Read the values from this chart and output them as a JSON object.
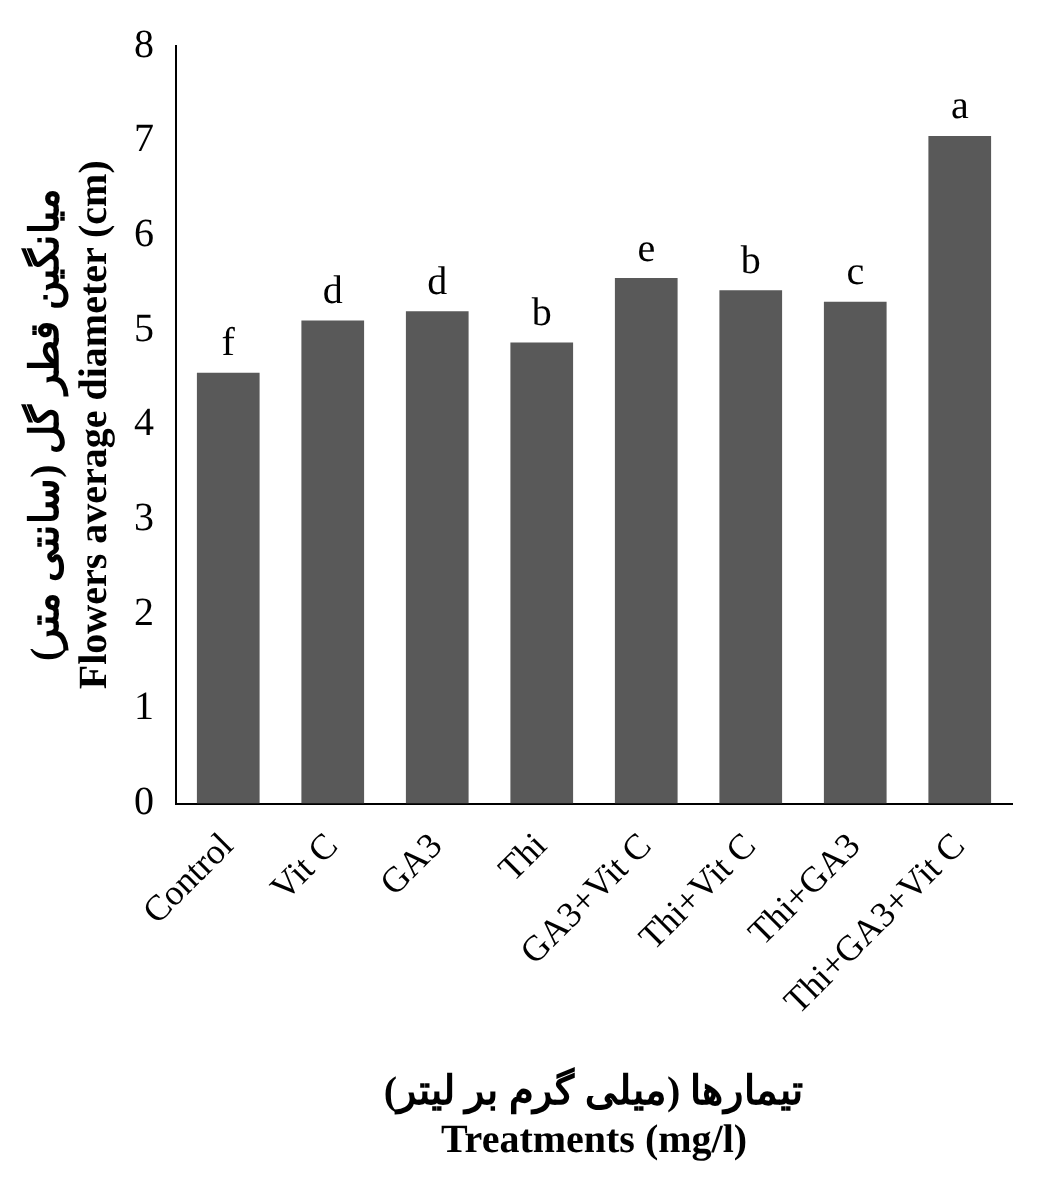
{
  "chart_data": {
    "type": "bar",
    "xlabel": "تیمارها (میلی گرم بر لیتر)\nTreatments (mg/l)",
    "ylabel": "میانگین قطر گل (سانتی متر)\nFlowers average diameter (cm)",
    "categories": [
      "Control",
      "Vit C",
      "GA3",
      "Thi",
      "GA3+Vit C",
      "Thi+Vit C",
      "Thi+GA3",
      "Thi+GA3+Vit C"
    ],
    "values": [
      4.55,
      5.1,
      5.2,
      4.87,
      5.55,
      5.42,
      5.3,
      7.05
    ],
    "color": "#595959",
    "ylim": [
      0,
      8
    ],
    "yticks": [
      0,
      1,
      2,
      3,
      4,
      5,
      6,
      7,
      8
    ],
    "grid": false,
    "legend": false,
    "annotations": [
      {
        "text": "f",
        "x": "Control",
        "y": 4.55
      },
      {
        "text": "d",
        "x": "Vit C",
        "y": 5.1
      },
      {
        "text": "d",
        "x": "GA3",
        "y": 5.2
      },
      {
        "text": "b",
        "x": "Thi",
        "y": 4.87
      },
      {
        "text": "e",
        "x": "GA3+Vit C",
        "y": 5.55
      },
      {
        "text": "b",
        "x": "Thi+Vit C",
        "y": 5.42
      },
      {
        "text": "c",
        "x": "Thi+GA3",
        "y": 5.3
      },
      {
        "text": "a",
        "x": "Thi+GA3+Vit C",
        "y": 7.05
      }
    ]
  }
}
